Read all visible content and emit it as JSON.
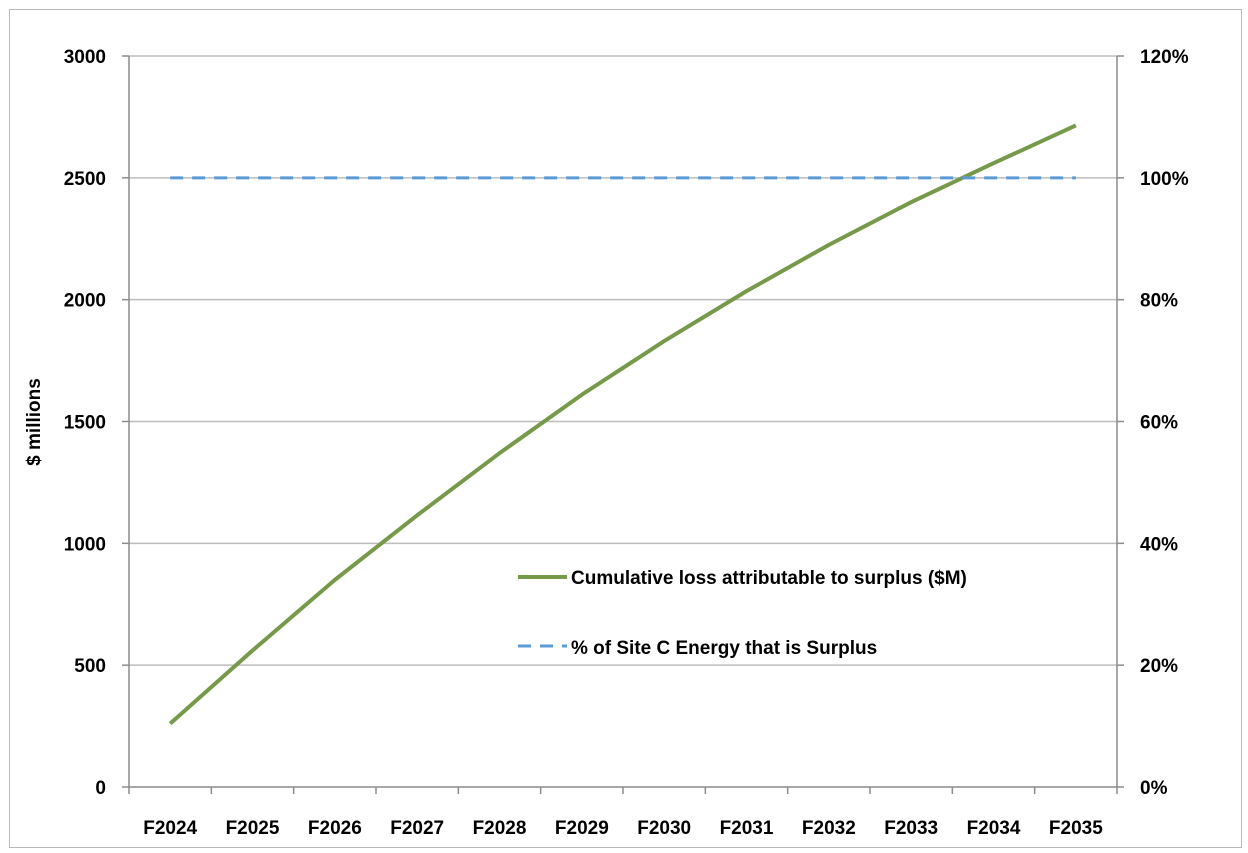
{
  "chart_data": {
    "type": "line",
    "ylabel": "$ millions",
    "categories": [
      "F2024",
      "F2025",
      "F2026",
      "F2027",
      "F2028",
      "F2029",
      "F2030",
      "F2031",
      "F2032",
      "F2033",
      "F2034",
      "F2035"
    ],
    "ylim": [
      0,
      3000
    ],
    "yticks": [
      "0",
      "500",
      "1000",
      "1500",
      "2000",
      "2500",
      "3000"
    ],
    "y2lim": [
      0,
      1.2
    ],
    "y2ticks": [
      "0%",
      "20%",
      "40%",
      "60%",
      "80%",
      "100%",
      "120%"
    ],
    "grid": true,
    "legend_position": "center-right",
    "series": [
      {
        "name": "Cumulative loss attributable to surplus ($M)",
        "axis": "left",
        "color": "#77994a",
        "style": "solid",
        "values": [
          260,
          560,
          850,
          1115,
          1370,
          1610,
          1830,
          2035,
          2225,
          2400,
          2560,
          2715
        ]
      },
      {
        "name": "% of Site C Energy that is Surplus",
        "axis": "right",
        "color": "#5b9bd5",
        "style": "dashed",
        "values": [
          1.0,
          1.0,
          1.0,
          1.0,
          1.0,
          1.0,
          1.0,
          1.0,
          1.0,
          1.0,
          1.0,
          1.0
        ]
      }
    ]
  }
}
